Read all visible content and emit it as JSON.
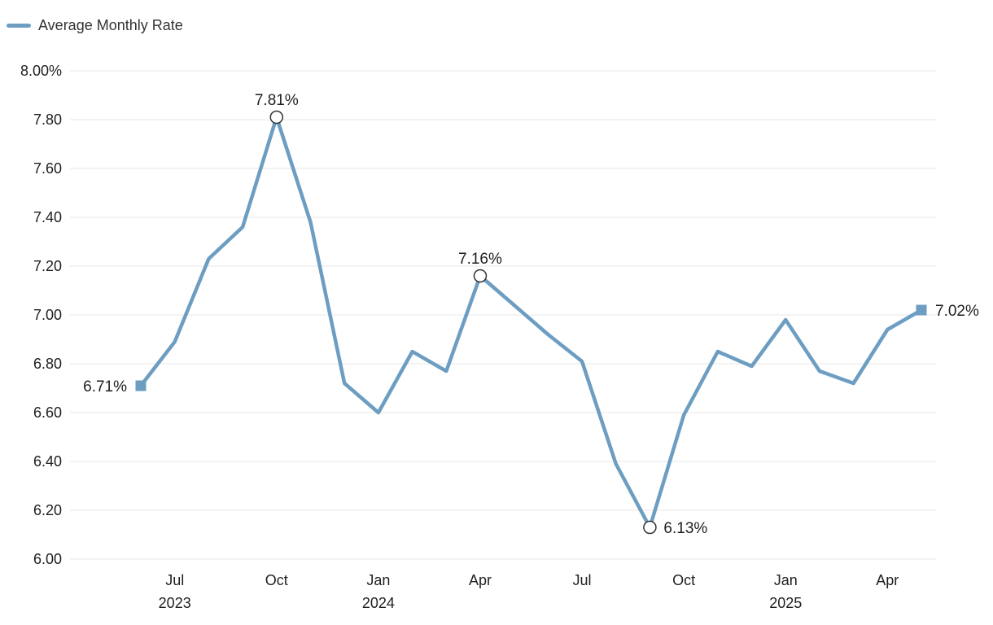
{
  "legend": {
    "label": "Average Monthly Rate"
  },
  "chart_data": {
    "type": "line",
    "series_name": "Average Monthly Rate",
    "x": [
      "2023-06",
      "2023-07",
      "2023-08",
      "2023-09",
      "2023-10",
      "2023-11",
      "2023-12",
      "2024-01",
      "2024-02",
      "2024-03",
      "2024-04",
      "2024-05",
      "2024-06",
      "2024-07",
      "2024-08",
      "2024-09",
      "2024-10",
      "2024-11",
      "2024-12",
      "2025-01",
      "2025-02",
      "2025-03",
      "2025-04",
      "2025-05"
    ],
    "values": [
      6.71,
      6.89,
      7.23,
      7.36,
      7.81,
      7.38,
      6.72,
      6.6,
      6.85,
      6.77,
      7.16,
      7.04,
      6.92,
      6.81,
      6.39,
      6.13,
      6.59,
      6.85,
      6.79,
      6.98,
      6.77,
      6.72,
      6.94,
      7.02
    ],
    "unit": "%",
    "ylim": [
      6.0,
      8.0
    ],
    "ytick_step": 0.2,
    "yticks_labels": [
      "8.00%",
      "7.80",
      "7.60",
      "7.40",
      "7.20",
      "7.00",
      "6.80",
      "6.60",
      "6.40",
      "6.20",
      "6.00"
    ],
    "xticks": [
      {
        "index": 1,
        "label": "Jul",
        "year": "2023"
      },
      {
        "index": 4,
        "label": "Oct"
      },
      {
        "index": 7,
        "label": "Jan",
        "year": "2024"
      },
      {
        "index": 10,
        "label": "Apr"
      },
      {
        "index": 13,
        "label": "Jul"
      },
      {
        "index": 16,
        "label": "Oct"
      },
      {
        "index": 19,
        "label": "Jan",
        "year": "2025"
      },
      {
        "index": 22,
        "label": "Apr"
      }
    ],
    "annotations": [
      {
        "index": 0,
        "label": "6.71%",
        "placement": "left",
        "marker": "square"
      },
      {
        "index": 4,
        "label": "7.81%",
        "placement": "top",
        "marker": "circle"
      },
      {
        "index": 10,
        "label": "7.16%",
        "placement": "top",
        "marker": "circle"
      },
      {
        "index": 15,
        "label": "6.13%",
        "placement": "right",
        "marker": "circle"
      },
      {
        "index": 23,
        "label": "7.02%",
        "placement": "right",
        "marker": "square"
      }
    ],
    "grid": "horizontal",
    "legend_position": "top-left",
    "colors": {
      "line": "#6D9EC2",
      "marker_circle_fill": "#FFFFFF",
      "marker_circle_stroke": "#333333",
      "grid": "#E7E7E7",
      "text": "#1F1F1F",
      "legend_text": "#333333"
    }
  }
}
